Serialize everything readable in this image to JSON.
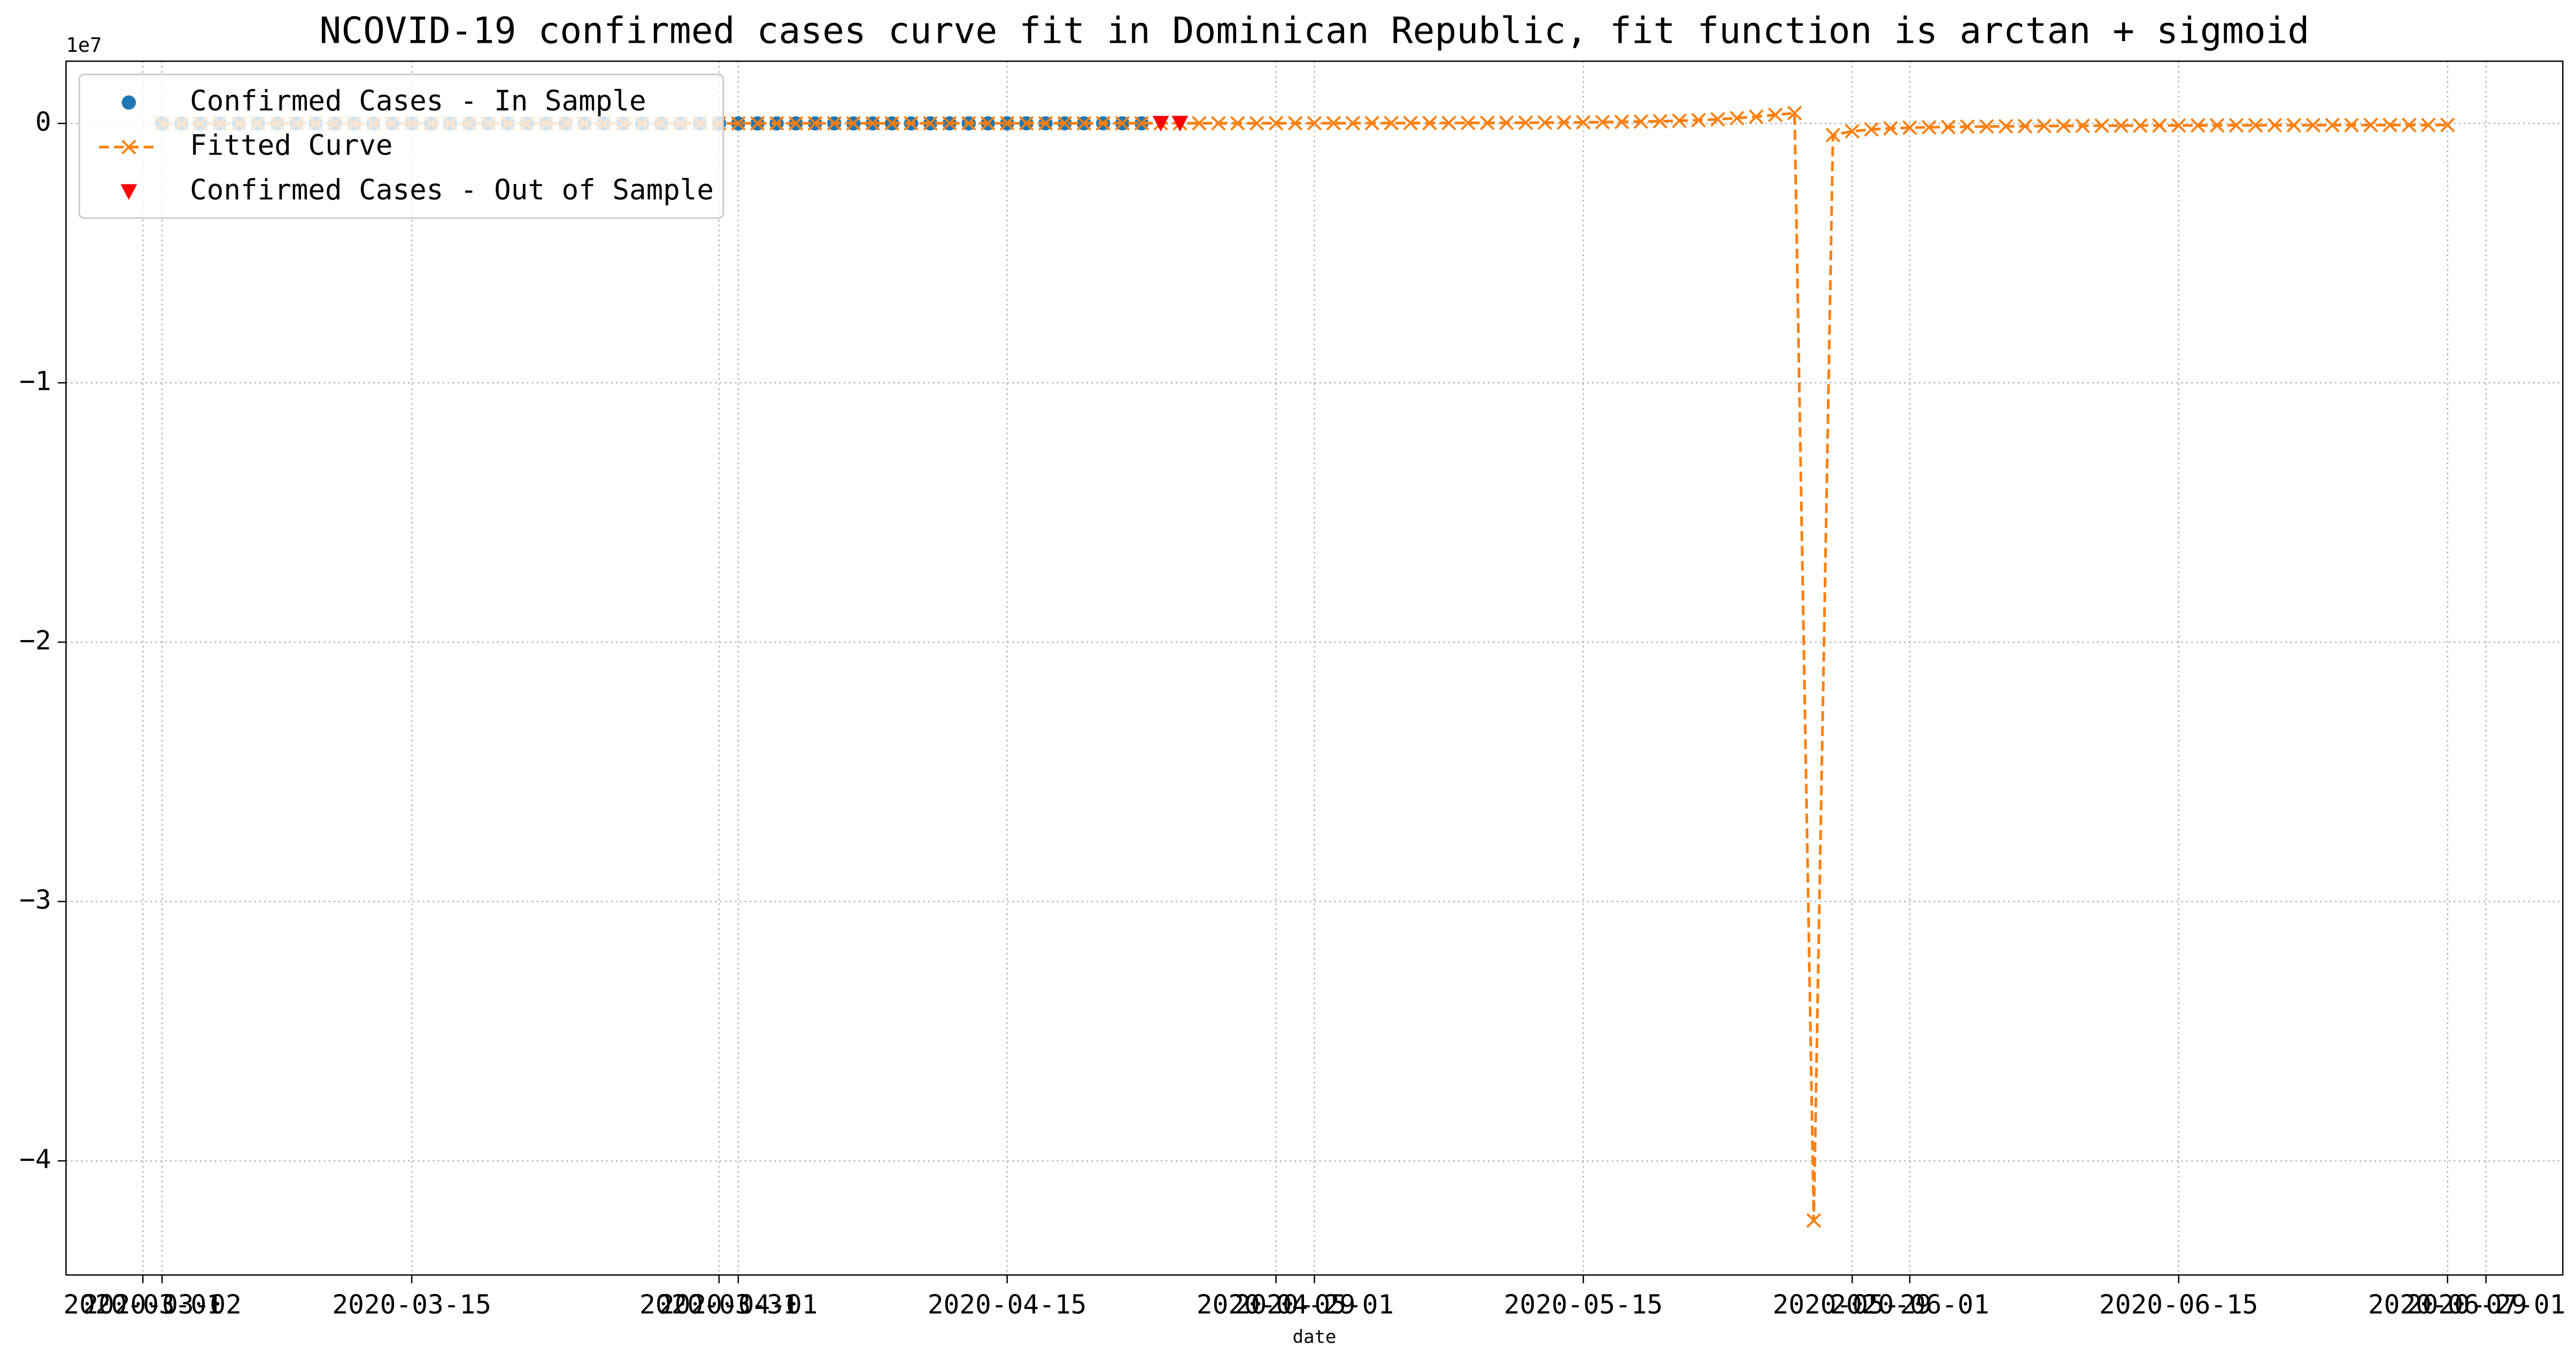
{
  "chart_data": {
    "type": "line",
    "title": "NCOVID-19 confirmed cases curve fit in Dominican Republic, fit function is arctan + sigmoid",
    "x_label": "date",
    "y_offset_label": "1e7",
    "x": [
      "2020-03-02",
      "2020-03-03",
      "2020-03-04",
      "2020-03-05",
      "2020-03-06",
      "2020-03-07",
      "2020-03-08",
      "2020-03-09",
      "2020-03-10",
      "2020-03-11",
      "2020-03-12",
      "2020-03-13",
      "2020-03-14",
      "2020-03-15",
      "2020-03-16",
      "2020-03-17",
      "2020-03-18",
      "2020-03-19",
      "2020-03-20",
      "2020-03-21",
      "2020-03-22",
      "2020-03-23",
      "2020-03-24",
      "2020-03-25",
      "2020-03-26",
      "2020-03-27",
      "2020-03-28",
      "2020-03-29",
      "2020-03-30",
      "2020-03-31",
      "2020-04-01",
      "2020-04-02",
      "2020-04-03",
      "2020-04-04",
      "2020-04-05",
      "2020-04-06",
      "2020-04-07",
      "2020-04-08",
      "2020-04-09",
      "2020-04-10",
      "2020-04-11",
      "2020-04-12",
      "2020-04-13",
      "2020-04-14",
      "2020-04-15",
      "2020-04-16",
      "2020-04-17",
      "2020-04-18",
      "2020-04-19",
      "2020-04-20",
      "2020-04-21",
      "2020-04-22",
      "2020-04-23",
      "2020-04-24",
      "2020-04-25",
      "2020-04-26",
      "2020-04-27",
      "2020-04-28",
      "2020-04-29",
      "2020-04-30",
      "2020-05-01",
      "2020-05-02",
      "2020-05-03",
      "2020-05-04",
      "2020-05-05",
      "2020-05-06",
      "2020-05-07",
      "2020-05-08",
      "2020-05-09",
      "2020-05-10",
      "2020-05-11",
      "2020-05-12",
      "2020-05-13",
      "2020-05-14",
      "2020-05-15",
      "2020-05-16",
      "2020-05-17",
      "2020-05-18",
      "2020-05-19",
      "2020-05-20",
      "2020-05-21",
      "2020-05-22",
      "2020-05-23",
      "2020-05-24",
      "2020-05-25",
      "2020-05-26",
      "2020-05-27",
      "2020-05-28",
      "2020-05-29",
      "2020-05-30",
      "2020-05-31",
      "2020-06-01",
      "2020-06-02",
      "2020-06-03",
      "2020-06-04",
      "2020-06-05",
      "2020-06-06",
      "2020-06-07",
      "2020-06-08",
      "2020-06-09",
      "2020-06-10",
      "2020-06-11",
      "2020-06-12",
      "2020-06-13",
      "2020-06-14",
      "2020-06-15",
      "2020-06-16",
      "2020-06-17",
      "2020-06-18",
      "2020-06-19",
      "2020-06-20",
      "2020-06-21",
      "2020-06-22",
      "2020-06-23",
      "2020-06-24",
      "2020-06-25",
      "2020-06-26",
      "2020-06-27",
      "2020-06-28",
      "2020-06-29"
    ],
    "series": [
      {
        "name": "Confirmed Cases - In Sample",
        "color": "#1f77b4",
        "marker": "o",
        "linestyle": "none",
        "values": [
          1,
          1,
          1,
          1,
          2,
          5,
          5,
          5,
          5,
          5,
          5,
          11,
          11,
          21,
          21,
          34,
          72,
          112,
          202,
          245,
          312,
          392,
          488,
          581,
          719,
          859,
          901,
          1109,
          1284,
          1380,
          1488,
          1488,
          1745,
          1828,
          1956,
          2111,
          2349,
          2620,
          2759,
          2967,
          3167,
          3286,
          3614,
          3755,
          4126,
          4335,
          4680,
          4680,
          4964,
          5044,
          5300,
          5543,
          null,
          null,
          null,
          null,
          null,
          null,
          null,
          null,
          null,
          null,
          null,
          null,
          null,
          null,
          null,
          null,
          null,
          null,
          null,
          null,
          null,
          null,
          null,
          null,
          null,
          null,
          null,
          null,
          null,
          null,
          null,
          null,
          null,
          null,
          null,
          null,
          null,
          null,
          null,
          null,
          null,
          null,
          null,
          null,
          null,
          null,
          null,
          null,
          null,
          null,
          null,
          null,
          null,
          null,
          null,
          null,
          null,
          null,
          null,
          null,
          null,
          null,
          null,
          null,
          null,
          null,
          null,
          null
        ]
      },
      {
        "name": "Fitted Curve",
        "color": "#ff7f0e",
        "marker": "x",
        "linestyle": "dashed",
        "values": [
          0,
          3,
          8,
          15,
          24,
          36,
          52,
          72,
          96,
          126,
          162,
          205,
          256,
          316,
          386,
          467,
          560,
          665,
          783,
          914,
          1059,
          1218,
          1390,
          1575,
          1772,
          1981,
          2200,
          2428,
          2663,
          2904,
          3149,
          3396,
          3643,
          3889,
          4132,
          4370,
          4602,
          4827,
          5043,
          5250,
          5447,
          5633,
          5808,
          5972,
          6125,
          6267,
          6398,
          6519,
          6630,
          6732,
          6825,
          6910,
          7000,
          7100,
          7250,
          7450,
          7700,
          8000,
          8400,
          8900,
          9500,
          10200,
          11000,
          12000,
          13200,
          14600,
          16200,
          18000,
          20000,
          22500,
          25500,
          29000,
          33000,
          38000,
          44000,
          51000,
          60000,
          71000,
          85000,
          103000,
          127000,
          160000,
          205000,
          260000,
          330000,
          400000,
          -42300000,
          -450000,
          -300000,
          -230000,
          -190000,
          -165000,
          -148000,
          -135000,
          -125000,
          -117000,
          -110000,
          -104000,
          -99000,
          -95000,
          -91000,
          -88000,
          -85000,
          -82000,
          -80000,
          -78000,
          -76000,
          -74000,
          -72000,
          -70500,
          -69000,
          -67500,
          -66000,
          -65000,
          -64000,
          -63000,
          -62000,
          -61000,
          -60000,
          -59000
        ]
      },
      {
        "name": "Confirmed Cases - Out of Sample",
        "color": "#ff0000",
        "marker": "v",
        "linestyle": "none",
        "values": [
          null,
          null,
          null,
          null,
          null,
          null,
          null,
          null,
          null,
          null,
          null,
          null,
          null,
          null,
          null,
          null,
          null,
          null,
          null,
          null,
          null,
          null,
          null,
          null,
          null,
          null,
          null,
          null,
          null,
          null,
          null,
          null,
          null,
          null,
          null,
          null,
          null,
          null,
          null,
          null,
          null,
          null,
          null,
          null,
          null,
          null,
          null,
          null,
          null,
          null,
          null,
          null,
          5749,
          5926,
          null,
          null,
          null,
          null,
          null,
          null,
          null,
          null,
          null,
          null,
          null,
          null,
          null,
          null,
          null,
          null,
          null,
          null,
          null,
          null,
          null,
          null,
          null,
          null,
          null,
          null,
          null,
          null,
          null,
          null,
          null,
          null,
          null,
          null,
          null,
          null,
          null,
          null,
          null,
          null,
          null,
          null,
          null,
          null,
          null,
          null,
          null,
          null,
          null,
          null,
          null,
          null,
          null,
          null,
          null,
          null,
          null,
          null,
          null,
          null,
          null,
          null,
          null,
          null,
          null,
          null
        ]
      }
    ],
    "xlim": [
      "2020-02-26",
      "2020-07-05"
    ],
    "xticks": [
      "2020-03-01",
      "2020-03-02",
      "2020-03-15",
      "2020-03-31",
      "2020-04-01",
      "2020-04-15",
      "2020-04-29",
      "2020-05-01",
      "2020-05-15",
      "2020-05-29",
      "2020-06-01",
      "2020-06-15",
      "2020-06-29",
      "2020-07-01"
    ],
    "ylim": [
      -44400000,
      2400000
    ],
    "yticks": [
      {
        "value": 0,
        "label": "0"
      },
      {
        "value": -10000000,
        "label": "−1"
      },
      {
        "value": -20000000,
        "label": "−2"
      },
      {
        "value": -30000000,
        "label": "−3"
      },
      {
        "value": -40000000,
        "label": "−4"
      }
    ],
    "grid": true,
    "legend": "upper left"
  }
}
